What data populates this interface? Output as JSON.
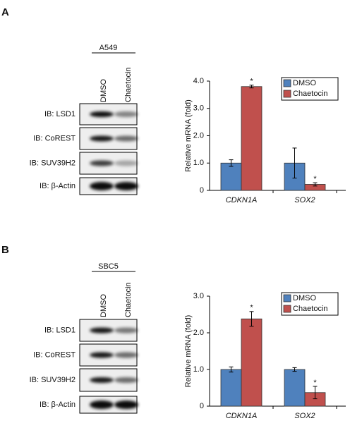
{
  "panels": [
    {
      "label": "A",
      "blot": {
        "cell_line": "A549",
        "lanes": [
          "DMSO",
          "Chaetocin"
        ],
        "rows": [
          "IB: LSD1",
          "IB: CoREST",
          "IB: SUV39H2",
          "IB: β-Actin"
        ]
      }
    },
    {
      "label": "B",
      "blot": {
        "cell_line": "SBC5",
        "lanes": [
          "DMSO",
          "Chaetocin"
        ],
        "rows": [
          "IB: LSD1",
          "IB: CoREST",
          "IB: SUV39H2",
          "IB: β-Actin"
        ]
      }
    }
  ],
  "chart_data": [
    {
      "type": "bar",
      "y_label": "Relative  mRNA (fold)",
      "categories": [
        "CDKN1A",
        "SOX2"
      ],
      "series": [
        {
          "name": "DMSO",
          "color": "#4f81bd",
          "values": [
            1.0,
            1.0
          ],
          "errors": [
            0.12,
            0.55
          ]
        },
        {
          "name": "Chaetocin",
          "color": "#c0504d",
          "values": [
            3.8,
            0.22
          ],
          "errors": [
            0.05,
            0.06
          ],
          "labels": [
            "*",
            "*"
          ]
        }
      ],
      "ylim": [
        0,
        4
      ],
      "yticks": [
        0,
        {
          "value": 1,
          "label": "1.0"
        },
        {
          "value": 2,
          "label": "2.0"
        },
        {
          "value": 3,
          "label": "3.0"
        },
        {
          "value": 4,
          "label": "4.0"
        }
      ],
      "legend": "upper right"
    },
    {
      "type": "bar",
      "y_label": "Relative  mRNA (fold)",
      "categories": [
        "CDKN1A",
        "SOX2"
      ],
      "series": [
        {
          "name": "DMSO",
          "color": "#4f81bd",
          "values": [
            1.0,
            1.0
          ],
          "errors": [
            0.07,
            0.05
          ]
        },
        {
          "name": "Chaetocin",
          "color": "#c0504d",
          "values": [
            2.38,
            0.37
          ],
          "errors": [
            0.2,
            0.17
          ],
          "labels": [
            "*",
            "*"
          ]
        }
      ],
      "ylim": [
        0,
        3
      ],
      "yticks": [
        0,
        {
          "value": 1,
          "label": "1.0"
        },
        {
          "value": 2,
          "label": "2.0"
        },
        {
          "value": 3,
          "label": "3.0"
        }
      ],
      "legend": "upper right"
    }
  ]
}
